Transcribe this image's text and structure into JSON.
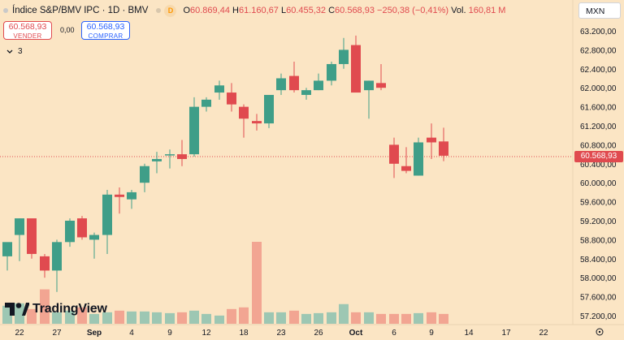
{
  "symbol": {
    "title": "Índice S&P/BMV IPC · 1D · BMV",
    "badge": "D",
    "ohlc": [
      {
        "k": "O",
        "v": "60.869,44"
      },
      {
        "k": "H",
        "v": "61.160,67"
      },
      {
        "k": "L",
        "v": "60.455,32"
      },
      {
        "k": "C",
        "v": "60.568,93"
      }
    ],
    "change": "−250,38 (−0,41%)",
    "volume_label": "Vol.",
    "volume_value": "160,81 M"
  },
  "trade": {
    "sell_price": "60.568,93",
    "sell_label": "VENDER",
    "spread": "0,00",
    "buy_price": "60.568,93",
    "buy_label": "COMPRAR"
  },
  "indicators": {
    "collapsed_count": "3"
  },
  "currency": "MXN",
  "last_price_tag": "60.568,93",
  "logo_text": "TradingView",
  "colors": {
    "up": "#3f9e88",
    "down": "#e04a4f",
    "vol_up": "#9dc7b3",
    "vol_down": "#f2a592",
    "background": "#fbe5c4"
  },
  "axis": {
    "price_ticks": [
      "63.200,00",
      "62.800,00",
      "62.400,00",
      "62.000,00",
      "61.600,00",
      "61.200,00",
      "60.800,00",
      "60.400,00",
      "60.000,00",
      "59.600,00",
      "59.200,00",
      "58.800,00",
      "58.400,00",
      "58.000,00",
      "57.600,00",
      "57.200,00"
    ],
    "date_ticks": [
      "22",
      "27",
      "Sep",
      "4",
      "9",
      "12",
      "18",
      "23",
      "26",
      "Oct",
      "6",
      "9",
      "14",
      "17",
      "22"
    ]
  },
  "chart_data": {
    "type": "candlestick",
    "ylim": [
      57000,
      63400
    ],
    "candles": [
      {
        "x": 9,
        "o": 58450,
        "h": 58700,
        "l": 58150,
        "c": 58750
      },
      {
        "x": 24,
        "o": 58900,
        "h": 59250,
        "l": 58350,
        "c": 59250
      },
      {
        "x": 39,
        "o": 59250,
        "h": 59200,
        "l": 58400,
        "c": 58500
      },
      {
        "x": 55,
        "o": 58450,
        "h": 58500,
        "l": 58000,
        "c": 58150
      },
      {
        "x": 70,
        "o": 58150,
        "h": 58800,
        "l": 57700,
        "c": 58750
      },
      {
        "x": 86,
        "o": 58750,
        "h": 59250,
        "l": 58650,
        "c": 59200
      },
      {
        "x": 101,
        "o": 59250,
        "h": 59300,
        "l": 58800,
        "c": 58850
      },
      {
        "x": 116,
        "o": 58800,
        "h": 58950,
        "l": 58400,
        "c": 58900
      },
      {
        "x": 132,
        "o": 58900,
        "h": 59850,
        "l": 58500,
        "c": 59750
      },
      {
        "x": 147,
        "o": 59750,
        "h": 59900,
        "l": 59350,
        "c": 59700
      },
      {
        "x": 162,
        "o": 59650,
        "h": 59850,
        "l": 59450,
        "c": 59800
      },
      {
        "x": 178,
        "o": 60000,
        "h": 60400,
        "l": 59800,
        "c": 60350
      },
      {
        "x": 193,
        "o": 60450,
        "h": 60650,
        "l": 60200,
        "c": 60500
      },
      {
        "x": 209,
        "o": 60600,
        "h": 60700,
        "l": 60300,
        "c": 60600
      },
      {
        "x": 224,
        "o": 60600,
        "h": 60900,
        "l": 60350,
        "c": 60500
      },
      {
        "x": 239,
        "o": 60600,
        "h": 61800,
        "l": 60550,
        "c": 61600
      },
      {
        "x": 254,
        "o": 61600,
        "h": 61800,
        "l": 61500,
        "c": 61750
      },
      {
        "x": 270,
        "o": 61900,
        "h": 62150,
        "l": 61750,
        "c": 62050
      },
      {
        "x": 285,
        "o": 61900,
        "h": 62100,
        "l": 61500,
        "c": 61650
      },
      {
        "x": 300,
        "o": 61600,
        "h": 61650,
        "l": 60950,
        "c": 61350
      },
      {
        "x": 316,
        "o": 61300,
        "h": 61450,
        "l": 61100,
        "c": 61250
      },
      {
        "x": 331,
        "o": 61250,
        "h": 61850,
        "l": 61150,
        "c": 61850
      },
      {
        "x": 346,
        "o": 61950,
        "h": 62300,
        "l": 61850,
        "c": 62200
      },
      {
        "x": 362,
        "o": 62250,
        "h": 62550,
        "l": 61900,
        "c": 61950
      },
      {
        "x": 377,
        "o": 61850,
        "h": 62000,
        "l": 61750,
        "c": 61950
      },
      {
        "x": 392,
        "o": 61950,
        "h": 62300,
        "l": 61950,
        "c": 62150
      },
      {
        "x": 408,
        "o": 62150,
        "h": 62550,
        "l": 62050,
        "c": 62500
      },
      {
        "x": 423,
        "o": 62500,
        "h": 63050,
        "l": 62400,
        "c": 62800
      },
      {
        "x": 438,
        "o": 62900,
        "h": 63100,
        "l": 61900,
        "c": 61900
      },
      {
        "x": 454,
        "o": 61950,
        "h": 62150,
        "l": 61350,
        "c": 62150
      },
      {
        "x": 469,
        "o": 62100,
        "h": 62500,
        "l": 61950,
        "c": 62000
      },
      {
        "x": 485,
        "o": 60800,
        "h": 60950,
        "l": 60100,
        "c": 60400
      },
      {
        "x": 500,
        "o": 60350,
        "h": 60750,
        "l": 60200,
        "c": 60250
      },
      {
        "x": 515,
        "o": 60150,
        "h": 60950,
        "l": 60150,
        "c": 60850
      },
      {
        "x": 531,
        "o": 60950,
        "h": 61250,
        "l": 60500,
        "c": 60850
      },
      {
        "x": 546,
        "o": 60870,
        "h": 61160,
        "l": 60455,
        "c": 60569
      }
    ],
    "volume": [
      {
        "x": 9,
        "v": 22
      },
      {
        "x": 24,
        "v": 25
      },
      {
        "x": 39,
        "v": 18
      },
      {
        "x": 55,
        "v": 42
      },
      {
        "x": 70,
        "v": 14
      },
      {
        "x": 86,
        "v": 16
      },
      {
        "x": 101,
        "v": 20
      },
      {
        "x": 116,
        "v": 12
      },
      {
        "x": 132,
        "v": 14
      },
      {
        "x": 147,
        "v": 16
      },
      {
        "x": 162,
        "v": 15
      },
      {
        "x": 178,
        "v": 15
      },
      {
        "x": 193,
        "v": 14
      },
      {
        "x": 209,
        "v": 13
      },
      {
        "x": 224,
        "v": 14
      },
      {
        "x": 239,
        "v": 16
      },
      {
        "x": 254,
        "v": 12
      },
      {
        "x": 270,
        "v": 10
      },
      {
        "x": 285,
        "v": 18
      },
      {
        "x": 300,
        "v": 20
      },
      {
        "x": 316,
        "v": 100
      },
      {
        "x": 331,
        "v": 14
      },
      {
        "x": 346,
        "v": 14
      },
      {
        "x": 362,
        "v": 16
      },
      {
        "x": 377,
        "v": 12
      },
      {
        "x": 392,
        "v": 13
      },
      {
        "x": 408,
        "v": 14
      },
      {
        "x": 423,
        "v": 24
      },
      {
        "x": 438,
        "v": 14
      },
      {
        "x": 454,
        "v": 14
      },
      {
        "x": 469,
        "v": 12
      },
      {
        "x": 485,
        "v": 12
      },
      {
        "x": 500,
        "v": 12
      },
      {
        "x": 515,
        "v": 13
      },
      {
        "x": 531,
        "v": 14
      },
      {
        "x": 546,
        "v": 12
      }
    ]
  }
}
